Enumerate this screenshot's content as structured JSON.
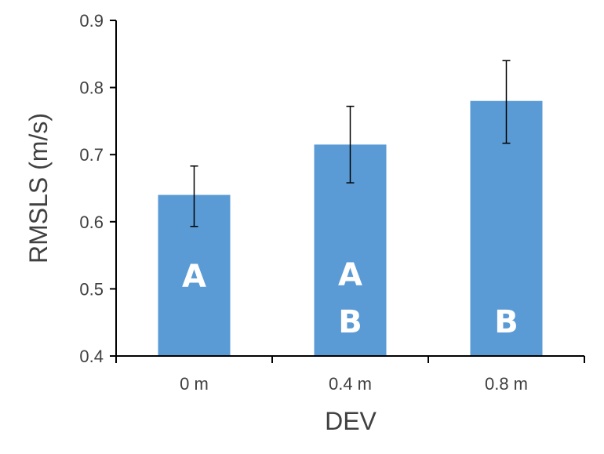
{
  "chart_data": {
    "type": "bar",
    "categories": [
      "0 m",
      "0.4 m",
      "0.8 m"
    ],
    "values": [
      0.64,
      0.715,
      0.78
    ],
    "error_low": [
      0.593,
      0.658,
      0.717
    ],
    "error_high": [
      0.683,
      0.772,
      0.84
    ],
    "group_letters": [
      [
        "A"
      ],
      [
        "A",
        "B"
      ],
      [
        "B"
      ]
    ],
    "xlabel": "DEV",
    "ylabel": "RMSLS (m/s)",
    "ylim": [
      0.4,
      0.9
    ],
    "yticks": [
      "0.4",
      "0.5",
      "0.6",
      "0.7",
      "0.8",
      "0.9"
    ],
    "grid": false,
    "legend": "none",
    "bar_color": "#5b9bd5",
    "axis_color": "#000000",
    "text_color": "#404040"
  }
}
